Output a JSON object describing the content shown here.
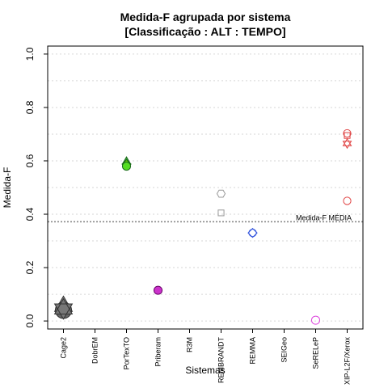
{
  "chart_data": {
    "type": "scatter",
    "title_line1": "Medida-F agrupada por sistema",
    "title_line2": "[Classificação : ALT : TEMPO]",
    "xlabel": "Sistemas",
    "ylabel": "Medida-F",
    "ylim": [
      -0.03,
      1.03
    ],
    "yticks": [
      0.0,
      0.2,
      0.4,
      0.6,
      0.8,
      1.0
    ],
    "ytick_labels": [
      "0.0",
      "0.2",
      "0.4",
      "0.6",
      "0.8",
      "1.0"
    ],
    "grid": "horizontal dotted",
    "categories": [
      "Cage2",
      "DobrEM",
      "PorTexTO",
      "Priberam",
      "R3M",
      "REMBRANDT",
      "REMMA",
      "SEIGeo",
      "SeRELeP",
      "XIP-L2F/Xerox"
    ],
    "reference_line": {
      "value": 0.372,
      "label": "Medida-F MÉDIA"
    },
    "points": [
      {
        "category": "Cage2",
        "y": 0.055,
        "shape": "triangle",
        "color": "#333333",
        "fill": "#888888",
        "size": 2.6
      },
      {
        "category": "Cage2",
        "y": 0.04,
        "shape": "circle",
        "color": "#333333",
        "fill": "#666666",
        "size": 2.4
      },
      {
        "category": "Cage2",
        "y": 0.045,
        "shape": "star",
        "color": "#333333",
        "fill": "#777777",
        "size": 2.6
      },
      {
        "category": "PorTexTO",
        "y": 0.597,
        "shape": "triangle",
        "color": "#1a6b1a",
        "fill": "#3aa33a",
        "size": 1.2
      },
      {
        "category": "PorTexTO",
        "y": 0.588,
        "shape": "diamond",
        "color": "#1a6b1a",
        "fill": "#66cc00",
        "size": 1.2
      },
      {
        "category": "PorTexTO",
        "y": 0.58,
        "shape": "circle",
        "color": "#1a6b1a",
        "fill": "#55dd22",
        "size": 1.2
      },
      {
        "category": "Priberam",
        "y": 0.115,
        "shape": "circle",
        "color": "#660066",
        "fill": "#cc33cc",
        "size": 1.2
      },
      {
        "category": "REMBRANDT",
        "y": 0.477,
        "shape": "hexagon",
        "color": "#999999",
        "fill": "none",
        "size": 1.2
      },
      {
        "category": "REMBRANDT",
        "y": 0.405,
        "shape": "square",
        "color": "#999999",
        "fill": "none",
        "size": 1.0
      },
      {
        "category": "REMMA",
        "y": 0.33,
        "shape": "diamond",
        "color": "#3355dd",
        "fill": "none",
        "size": 1.2
      },
      {
        "category": "REMMA",
        "y": 0.33,
        "shape": "circle",
        "color": "#3355dd",
        "fill": "none",
        "size": 1.1
      },
      {
        "category": "SeRELeP",
        "y": 0.003,
        "shape": "circle",
        "color": "#dd44dd",
        "fill": "none",
        "size": 1.2
      },
      {
        "category": "XIP-L2F/Xerox",
        "y": 0.703,
        "shape": "circle",
        "color": "#e04444",
        "fill": "none",
        "size": 1.1
      },
      {
        "category": "XIP-L2F/Xerox",
        "y": 0.695,
        "shape": "square",
        "color": "#e04444",
        "fill": "none",
        "size": 1.0
      },
      {
        "category": "XIP-L2F/Xerox",
        "y": 0.665,
        "shape": "star",
        "color": "#e04444",
        "fill": "none",
        "size": 1.2
      },
      {
        "category": "XIP-L2F/Xerox",
        "y": 0.45,
        "shape": "circle",
        "color": "#e04444",
        "fill": "none",
        "size": 1.1
      }
    ]
  }
}
